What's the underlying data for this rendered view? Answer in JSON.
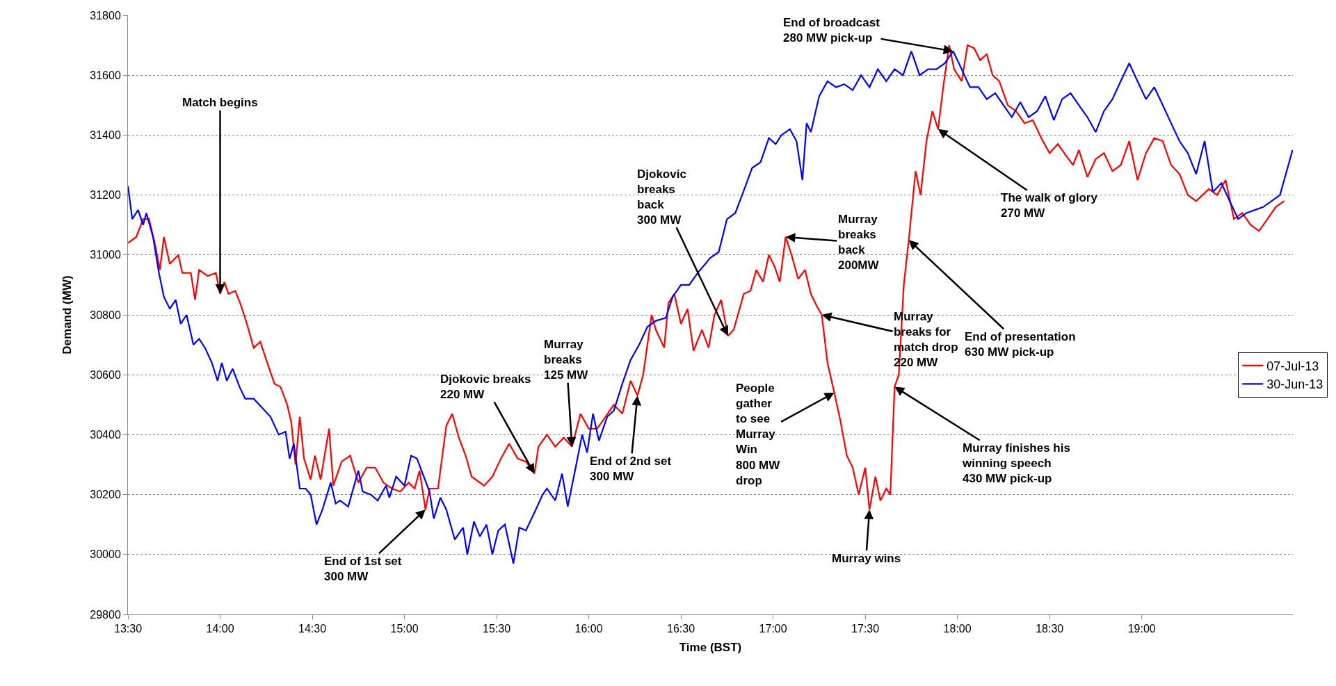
{
  "chart_data": {
    "type": "line",
    "xlabel": "Time (BST)",
    "ylabel": "Demand (MW)",
    "xlim": [
      13.5,
      19.82
    ],
    "ylim": [
      29800,
      31800
    ],
    "xticks": [
      {
        "value": 13.5,
        "label": "13:30"
      },
      {
        "value": 14.0,
        "label": "14:00"
      },
      {
        "value": 14.5,
        "label": "14:30"
      },
      {
        "value": 15.0,
        "label": "15:00"
      },
      {
        "value": 15.5,
        "label": "15:30"
      },
      {
        "value": 16.0,
        "label": "16:00"
      },
      {
        "value": 16.5,
        "label": "16:30"
      },
      {
        "value": 17.0,
        "label": "17:00"
      },
      {
        "value": 17.5,
        "label": "17:30"
      },
      {
        "value": 18.0,
        "label": "18:00"
      },
      {
        "value": 18.5,
        "label": "18:30"
      },
      {
        "value": 19.0,
        "label": "19:00"
      }
    ],
    "yticks": [
      29800,
      30000,
      30200,
      30400,
      30600,
      30800,
      31000,
      31200,
      31400,
      31600,
      31800
    ],
    "grid": "y",
    "legend": "right",
    "marker": "none",
    "line_style": "solid",
    "series": [
      {
        "name": "07-Jul-13",
        "color": "#ff0000",
        "x": [
          13.5,
          13.545,
          13.582,
          13.614,
          13.645,
          13.673,
          13.695,
          13.727,
          13.773,
          13.795,
          13.841,
          13.864,
          13.886,
          13.932,
          13.977,
          14.0,
          14.023,
          14.045,
          14.082,
          14.114,
          14.145,
          14.182,
          14.218,
          14.25,
          14.295,
          14.327,
          14.364,
          14.386,
          14.409,
          14.432,
          14.455,
          14.491,
          14.514,
          14.545,
          14.591,
          14.614,
          14.659,
          14.705,
          14.75,
          14.795,
          14.841,
          14.886,
          14.932,
          14.977,
          15.023,
          15.055,
          15.082,
          15.114,
          15.136,
          15.182,
          15.227,
          15.259,
          15.295,
          15.332,
          15.364,
          15.432,
          15.477,
          15.523,
          15.568,
          15.614,
          15.659,
          15.705,
          15.727,
          15.773,
          15.818,
          15.864,
          15.909,
          15.955,
          16.0,
          16.045,
          16.091,
          16.136,
          16.182,
          16.227,
          16.264,
          16.295,
          16.341,
          16.364,
          16.409,
          16.432,
          16.464,
          16.5,
          16.536,
          16.568,
          16.614,
          16.65,
          16.682,
          16.718,
          16.755,
          16.786,
          16.841,
          16.877,
          16.909,
          16.945,
          16.977,
          17.009,
          17.036,
          17.068,
          17.1,
          17.136,
          17.173,
          17.205,
          17.236,
          17.264,
          17.295,
          17.332,
          17.364,
          17.4,
          17.432,
          17.464,
          17.5,
          17.523,
          17.555,
          17.582,
          17.614,
          17.636,
          17.659,
          17.682,
          17.709,
          17.736,
          17.773,
          17.8,
          17.832,
          17.864,
          17.895,
          17.923,
          17.955,
          17.982,
          18.023,
          18.055,
          18.091,
          18.123,
          18.159,
          18.191,
          18.227,
          18.273,
          18.318,
          18.364,
          18.409,
          18.455,
          18.5,
          18.545,
          18.591,
          18.627,
          18.659,
          18.705,
          18.75,
          18.795,
          18.841,
          18.886,
          18.932,
          18.977,
          19.023,
          19.068,
          19.114,
          19.159,
          19.205,
          19.25,
          19.295,
          19.364,
          19.409,
          19.455,
          19.5,
          19.545,
          19.591,
          19.636,
          19.682,
          19.727,
          19.773
        ],
        "values": [
          31040,
          31060,
          31120,
          31120,
          31040,
          30950,
          31060,
          30970,
          31000,
          30940,
          30940,
          30850,
          30950,
          30930,
          30940,
          30870,
          30910,
          30870,
          30880,
          30830,
          30770,
          30690,
          30710,
          30650,
          30570,
          30560,
          30500,
          30440,
          30300,
          30460,
          30320,
          30250,
          30330,
          30250,
          30420,
          30230,
          30310,
          30330,
          30240,
          30290,
          30290,
          30240,
          30220,
          30210,
          30240,
          30220,
          30280,
          30150,
          30220,
          30220,
          30430,
          30470,
          30390,
          30330,
          30260,
          30230,
          30260,
          30320,
          30370,
          30320,
          30310,
          30270,
          30360,
          30400,
          30360,
          30390,
          30360,
          30470,
          30420,
          30420,
          30460,
          30500,
          30470,
          30580,
          30530,
          30600,
          30800,
          30750,
          30690,
          30840,
          30870,
          30770,
          30820,
          30680,
          30750,
          30690,
          30800,
          30850,
          30730,
          30750,
          30870,
          30880,
          30950,
          30910,
          31000,
          30960,
          30910,
          31060,
          31000,
          30920,
          30950,
          30870,
          30830,
          30800,
          30640,
          30540,
          30450,
          30330,
          30290,
          30200,
          30290,
          30150,
          30260,
          30180,
          30220,
          30200,
          30560,
          30600,
          30900,
          31050,
          31280,
          31200,
          31380,
          31480,
          31420,
          31560,
          31700,
          31620,
          31580,
          31700,
          31690,
          31650,
          31670,
          31600,
          31580,
          31500,
          31480,
          31440,
          31450,
          31390,
          31340,
          31370,
          31330,
          31300,
          31350,
          31260,
          31320,
          31340,
          31280,
          31300,
          31380,
          31250,
          31340,
          31390,
          31380,
          31300,
          31270,
          31200,
          31180,
          31220,
          31200,
          31250,
          31120,
          31140,
          31100,
          31080,
          31120,
          31160,
          31180
        ]
      },
      {
        "name": "30-Jun-13",
        "color": "#0000ff",
        "x": [
          13.5,
          13.523,
          13.555,
          13.582,
          13.6,
          13.636,
          13.668,
          13.695,
          13.727,
          13.759,
          13.786,
          13.818,
          13.855,
          13.886,
          13.918,
          13.955,
          13.986,
          14.009,
          14.036,
          14.068,
          14.105,
          14.136,
          14.182,
          14.227,
          14.273,
          14.318,
          14.355,
          14.377,
          14.4,
          14.432,
          14.464,
          14.491,
          14.523,
          14.555,
          14.6,
          14.627,
          14.65,
          14.695,
          14.727,
          14.75,
          14.773,
          14.818,
          14.855,
          14.9,
          14.918,
          14.955,
          15.0,
          15.036,
          15.068,
          15.105,
          15.136,
          15.159,
          15.195,
          15.227,
          15.273,
          15.318,
          15.341,
          15.377,
          15.409,
          15.445,
          15.477,
          15.509,
          15.545,
          15.591,
          15.623,
          15.659,
          15.705,
          15.75,
          15.773,
          15.818,
          15.855,
          15.886,
          15.932,
          15.964,
          15.991,
          16.023,
          16.055,
          16.1,
          16.136,
          16.182,
          16.227,
          16.273,
          16.318,
          16.364,
          16.418,
          16.455,
          16.5,
          16.545,
          16.591,
          16.659,
          16.705,
          16.75,
          16.795,
          16.832,
          16.886,
          16.932,
          16.977,
          17.014,
          17.045,
          17.091,
          17.127,
          17.159,
          17.182,
          17.205,
          17.25,
          17.295,
          17.341,
          17.386,
          17.432,
          17.477,
          17.523,
          17.568,
          17.614,
          17.659,
          17.705,
          17.75,
          17.795,
          17.841,
          17.886,
          17.932,
          17.977,
          18.023,
          18.068,
          18.114,
          18.159,
          18.205,
          18.25,
          18.295,
          18.341,
          18.386,
          18.432,
          18.477,
          18.523,
          18.568,
          18.614,
          18.659,
          18.705,
          18.75,
          18.795,
          18.841,
          18.886,
          18.932,
          18.977,
          19.023,
          19.068,
          19.114,
          19.159,
          19.205,
          19.25,
          19.295,
          19.341,
          19.386,
          19.432,
          19.477,
          19.523,
          19.568,
          19.614,
          19.659,
          19.705,
          19.75,
          19.818
        ],
        "values": [
          31230,
          31120,
          31150,
          31100,
          31140,
          31060,
          30940,
          30860,
          30820,
          30850,
          30770,
          30800,
          30700,
          30720,
          30690,
          30640,
          30580,
          30640,
          30580,
          30620,
          30560,
          30520,
          30520,
          30490,
          30460,
          30400,
          30410,
          30320,
          30370,
          30220,
          30220,
          30200,
          30100,
          30150,
          30240,
          30170,
          30180,
          30160,
          30230,
          30280,
          30210,
          30200,
          30180,
          30230,
          30190,
          30260,
          30230,
          30330,
          30320,
          30260,
          30210,
          30120,
          30190,
          30150,
          30050,
          30090,
          30000,
          30110,
          30060,
          30100,
          30000,
          30080,
          30100,
          29970,
          30090,
          30080,
          30140,
          30200,
          30220,
          30180,
          30270,
          30160,
          30300,
          30400,
          30340,
          30470,
          30380,
          30460,
          30480,
          30570,
          30650,
          30700,
          30760,
          30780,
          30790,
          30860,
          30900,
          30900,
          30940,
          30990,
          31010,
          31120,
          31140,
          31200,
          31290,
          31310,
          31390,
          31370,
          31400,
          31420,
          31380,
          31250,
          31440,
          31410,
          31530,
          31580,
          31560,
          31570,
          31550,
          31600,
          31560,
          31620,
          31580,
          31620,
          31600,
          31680,
          31600,
          31620,
          31620,
          31640,
          31680,
          31620,
          31560,
          31560,
          31520,
          31540,
          31500,
          31460,
          31510,
          31460,
          31480,
          31530,
          31450,
          31520,
          31540,
          31500,
          31460,
          31410,
          31480,
          31520,
          31580,
          31640,
          31580,
          31520,
          31560,
          31500,
          31440,
          31380,
          31340,
          31270,
          31380,
          31210,
          31240,
          31180,
          31120,
          31140,
          31150,
          31160,
          31180,
          31200,
          31350
        ]
      }
    ],
    "annotations": [
      {
        "text": "Match begins",
        "x": 14.0,
        "y": 30870
      },
      {
        "text": "End of 1st set\n300 MW",
        "x": 15.114,
        "y": 30150
      },
      {
        "text": "Djokovic breaks\n220 MW",
        "x": 15.705,
        "y": 30270
      },
      {
        "text": "Murray\nbreaks\n125 MW",
        "x": 15.909,
        "y": 30360
      },
      {
        "text": "End of 2nd set\n300 MW",
        "x": 16.264,
        "y": 30530
      },
      {
        "text": "Djokovic\nbreaks\nback\n300 MW",
        "x": 16.755,
        "y": 30730
      },
      {
        "text": "Murray\nbreaks\nback\n200MW",
        "x": 17.068,
        "y": 31060
      },
      {
        "text": "Murray\nbreaks for\nmatch drop\n220 MW",
        "x": 17.264,
        "y": 30800
      },
      {
        "text": "People\ngather\nto see\nMurray\nWin\n800 MW\ndrop",
        "x": 17.332,
        "y": 30540
      },
      {
        "text": "Murray wins",
        "x": 17.523,
        "y": 30150
      },
      {
        "text": "Murray finishes his\nwinning speech\n430 MW pick-up",
        "x": 17.659,
        "y": 30560
      },
      {
        "text": "End of presentation\n630 MW pick-up",
        "x": 17.736,
        "y": 31050
      },
      {
        "text": "The walk of glory\n270 MW",
        "x": 17.895,
        "y": 31420
      },
      {
        "text": "End of broadcast\n280 MW pick-up",
        "x": 17.977,
        "y": 31680
      }
    ]
  }
}
